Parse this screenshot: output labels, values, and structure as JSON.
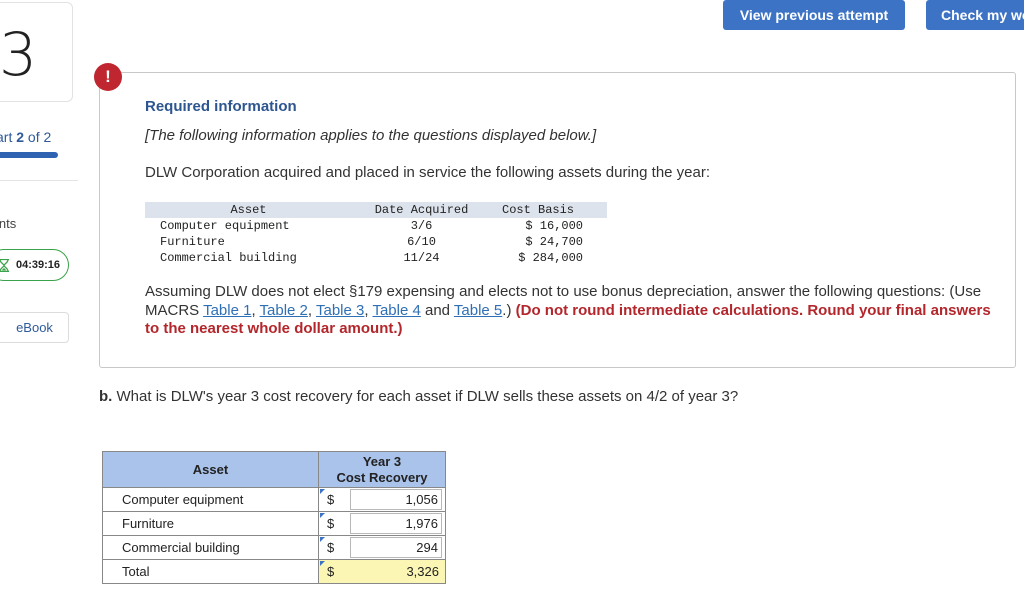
{
  "rail": {
    "question_number": "3",
    "part_prefix": "art",
    "part_current": "2",
    "part_of": "of 2",
    "points_label": "ints",
    "timer": "04:39:16",
    "ebook_label": "eBook"
  },
  "header": {
    "view_previous_label": "View previous attempt",
    "check_my_work_label": "Check my wo"
  },
  "info": {
    "alert_glyph": "!",
    "title": "Required information",
    "bracket_note": "[The following information applies to the questions displayed below.]",
    "intro": "DLW Corporation acquired and placed in service the following assets during the year:",
    "table": {
      "headers": [
        "Asset",
        "Date Acquired",
        "Cost Basis"
      ],
      "rows": [
        {
          "asset": "Computer equipment",
          "date": "3/6",
          "cost": "$ 16,000"
        },
        {
          "asset": "Furniture",
          "date": "6/10",
          "cost": "$ 24,700"
        },
        {
          "asset": "Commercial building",
          "date": "11/24",
          "cost": "$ 284,000"
        }
      ]
    },
    "para_start": "Assuming DLW does not elect §179 expensing and elects not to use bonus depreciation, answer the following questions: (Use MACRS ",
    "links": [
      "Table 1",
      "Table 2",
      "Table 3",
      "Table 4",
      "Table 5"
    ],
    "sep_comma": ", ",
    "sep_and": " and ",
    "para_after_links": ".) ",
    "red_note": "(Do not round intermediate calculations. Round your final answers to the nearest whole dollar amount.)"
  },
  "question": {
    "label": "b.",
    "text": " What is DLW's year 3 cost recovery for each asset if DLW sells these assets on 4/2 of year 3?"
  },
  "answer_table": {
    "header_asset": "Asset",
    "header_year_line1": "Year 3",
    "header_year_line2": "Cost Recovery",
    "currency": "$",
    "rows": [
      {
        "label": "Computer equipment",
        "value": "1,056"
      },
      {
        "label": "Furniture",
        "value": "1,976"
      },
      {
        "label": "Commercial building",
        "value": "294"
      }
    ],
    "total": {
      "label": "Total",
      "value": "3,326"
    }
  },
  "colors": {
    "primary_button": "#3d73c4",
    "alert_red": "#c0262f",
    "red_note": "#b3262b",
    "header_blue": "#a9c3ea",
    "total_yellow": "#fbf6b4",
    "timer_green": "#3aa24a"
  }
}
